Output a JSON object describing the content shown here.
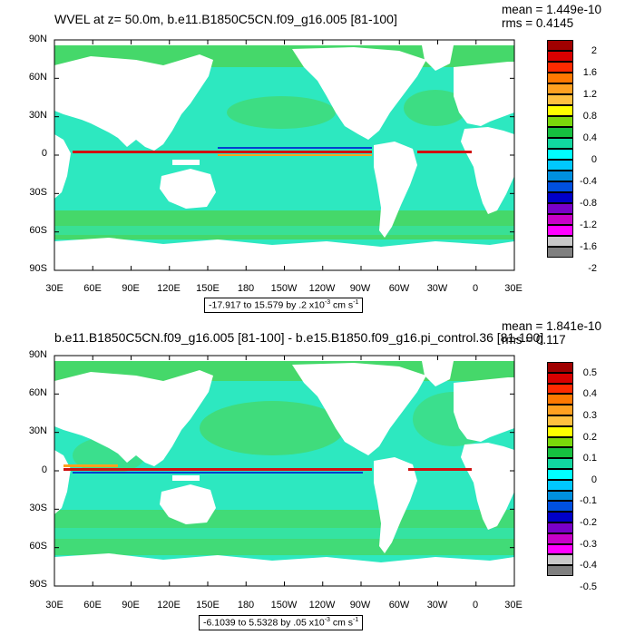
{
  "panels": [
    {
      "title": "WVEL at z=  50.0m, b.e11.B1850C5CN.f09_g16.005 [81-100]",
      "stat_mean": "mean = 1.449e-10",
      "stat_rms": "rms = 0.4145",
      "range_prefix": "-17.917 to 15.579 by .2 x10",
      "range_exp": "-3",
      "range_unit": " cm s",
      "range_unit_exp": "-1",
      "colorbar": {
        "labels": [
          "2",
          "1.6",
          "1.2",
          "0.8",
          "0.4",
          "0",
          "-0.4",
          "-0.8",
          "-1.2",
          "-1.6",
          "-2"
        ],
        "colors": [
          "#a00000",
          "#d80000",
          "#ff2a00",
          "#ff7800",
          "#ffa020",
          "#ffc040",
          "#ffff00",
          "#7ad80a",
          "#16c040",
          "#10d8a0",
          "#00ffff",
          "#00c8ff",
          "#0090e0",
          "#0050e0",
          "#0000c8",
          "#7a00c8",
          "#c800c8",
          "#ff00ff",
          "#c8c8c8",
          "#808080"
        ]
      }
    },
    {
      "title": "b.e11.B1850C5CN.f09_g16.005 [81-100] - b.e15.B1850.f09_g16.pi_control.36 [81-100]",
      "stat_mean": "mean = 1.841e-10",
      "stat_rms": "rms = 0.117",
      "range_prefix": "-6.1039 to 5.5328 by .05 x10",
      "range_exp": "-3",
      "range_unit": " cm s",
      "range_unit_exp": "-1",
      "colorbar": {
        "labels": [
          "0.5",
          "0.4",
          "0.3",
          "0.2",
          "0.1",
          "0",
          "-0.1",
          "-0.2",
          "-0.3",
          "-0.4",
          "-0.5"
        ],
        "colors": [
          "#a00000",
          "#d80000",
          "#ff2a00",
          "#ff7800",
          "#ffa020",
          "#ffc040",
          "#ffff00",
          "#7ad80a",
          "#16c040",
          "#10d8a0",
          "#00ffff",
          "#00c8ff",
          "#0090e0",
          "#0050e0",
          "#0000c8",
          "#7a00c8",
          "#c800c8",
          "#ff00ff",
          "#c8c8c8",
          "#808080"
        ]
      }
    }
  ],
  "lat_labels": [
    "90N",
    "60N",
    "30N",
    "0",
    "30S",
    "60S",
    "90S"
  ],
  "lon_labels": [
    "30E",
    "60E",
    "90E",
    "120E",
    "150E",
    "180",
    "150W",
    "120W",
    "90W",
    "60W",
    "30W",
    "0",
    "30E"
  ],
  "colors": {
    "ocean_background": "#2de8c0",
    "ocean_green": "#45d86a",
    "land": "#ffffff",
    "positive_band": "#d01010",
    "negative_band": "#0040d0"
  }
}
